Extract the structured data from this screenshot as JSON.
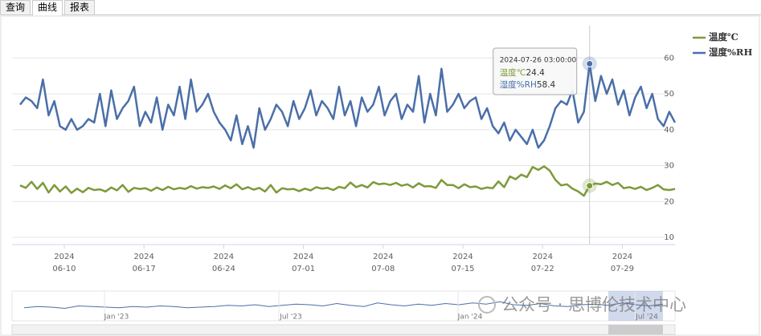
{
  "tabs": [
    "查询",
    "曲线",
    "报表"
  ],
  "active_tab": 1,
  "chart_data": {
    "type": "line",
    "x": [
      "2024-06-06 03:00:00",
      "2024-06-06 15:00:00",
      "2024-06-07 03:00:00",
      "2024-06-07 15:00:00",
      "2024-06-08 03:00:00",
      "2024-06-08 15:00:00",
      "2024-06-09 03:00:00",
      "2024-06-09 15:00:00",
      "2024-06-10 03:00:00",
      "2024-06-10 15:00:00",
      "2024-06-11 03:00:00",
      "2024-06-11 15:00:00",
      "2024-06-12 03:00:00",
      "2024-06-12 15:00:00",
      "2024-06-13 03:00:00",
      "2024-06-13 15:00:00",
      "2024-06-14 03:00:00",
      "2024-06-14 15:00:00",
      "2024-06-15 03:00:00",
      "2024-06-15 15:00:00",
      "2024-06-16 03:00:00",
      "2024-06-16 15:00:00",
      "2024-06-17 03:00:00",
      "2024-06-17 15:00:00",
      "2024-06-18 03:00:00",
      "2024-06-18 15:00:00",
      "2024-06-19 03:00:00",
      "2024-06-19 15:00:00",
      "2024-06-20 03:00:00",
      "2024-06-20 15:00:00",
      "2024-06-21 03:00:00",
      "2024-06-21 15:00:00",
      "2024-06-22 03:00:00",
      "2024-06-22 15:00:00",
      "2024-06-23 03:00:00",
      "2024-06-23 15:00:00",
      "2024-06-24 03:00:00",
      "2024-06-24 15:00:00",
      "2024-06-25 03:00:00",
      "2024-06-25 15:00:00",
      "2024-06-26 03:00:00",
      "2024-06-26 15:00:00",
      "2024-06-27 03:00:00",
      "2024-06-27 15:00:00",
      "2024-06-28 03:00:00",
      "2024-06-28 15:00:00",
      "2024-06-29 03:00:00",
      "2024-06-29 15:00:00",
      "2024-06-30 03:00:00",
      "2024-06-30 15:00:00",
      "2024-07-01 03:00:00",
      "2024-07-01 15:00:00",
      "2024-07-02 03:00:00",
      "2024-07-02 15:00:00",
      "2024-07-03 03:00:00",
      "2024-07-03 15:00:00",
      "2024-07-04 03:00:00",
      "2024-07-04 15:00:00",
      "2024-07-05 03:00:00",
      "2024-07-05 15:00:00",
      "2024-07-06 03:00:00",
      "2024-07-06 15:00:00",
      "2024-07-07 03:00:00",
      "2024-07-07 15:00:00",
      "2024-07-08 03:00:00",
      "2024-07-08 15:00:00",
      "2024-07-09 03:00:00",
      "2024-07-09 15:00:00",
      "2024-07-10 03:00:00",
      "2024-07-10 15:00:00",
      "2024-07-11 03:00:00",
      "2024-07-11 15:00:00",
      "2024-07-12 03:00:00",
      "2024-07-12 15:00:00",
      "2024-07-13 03:00:00",
      "2024-07-13 15:00:00",
      "2024-07-14 03:00:00",
      "2024-07-14 15:00:00",
      "2024-07-15 03:00:00",
      "2024-07-15 15:00:00",
      "2024-07-16 03:00:00",
      "2024-07-16 15:00:00",
      "2024-07-17 03:00:00",
      "2024-07-17 15:00:00",
      "2024-07-18 03:00:00",
      "2024-07-18 15:00:00",
      "2024-07-19 03:00:00",
      "2024-07-19 15:00:00",
      "2024-07-20 03:00:00",
      "2024-07-20 15:00:00",
      "2024-07-21 03:00:00",
      "2024-07-21 15:00:00",
      "2024-07-22 03:00:00",
      "2024-07-22 15:00:00",
      "2024-07-23 03:00:00",
      "2024-07-23 15:00:00",
      "2024-07-24 03:00:00",
      "2024-07-24 15:00:00",
      "2024-07-25 03:00:00",
      "2024-07-25 15:00:00",
      "2024-07-26 03:00:00",
      "2024-07-26 15:00:00",
      "2024-07-27 03:00:00",
      "2024-07-27 15:00:00",
      "2024-07-28 03:00:00",
      "2024-07-28 15:00:00",
      "2024-07-29 03:00:00",
      "2024-07-29 15:00:00",
      "2024-07-30 03:00:00",
      "2024-07-30 15:00:00",
      "2024-07-31 03:00:00",
      "2024-07-31 15:00:00",
      "2024-08-01 03:00:00",
      "2024-08-01 15:00:00",
      "2024-08-02 03:00:00",
      "2024-08-02 15:00:00"
    ],
    "series": [
      {
        "name": "温度℃",
        "color": "#7d9a3a",
        "values": [
          24.5,
          23.8,
          25.5,
          23.5,
          25.2,
          22.5,
          24.6,
          22.8,
          24.2,
          22.4,
          23.6,
          22.6,
          23.8,
          23.2,
          23.4,
          22.8,
          23.9,
          23.1,
          24.6,
          22.7,
          23.8,
          23.5,
          23.7,
          23.0,
          23.9,
          23.2,
          24.1,
          23.4,
          23.8,
          23.5,
          24.3,
          23.6,
          24.0,
          23.8,
          24.2,
          23.5,
          24.5,
          23.7,
          24.8,
          23.4,
          24.0,
          23.3,
          23.8,
          22.8,
          24.6,
          22.5,
          23.7,
          23.4,
          23.5,
          22.9,
          23.6,
          23.1,
          24.0,
          23.6,
          23.8,
          23.2,
          24.1,
          23.7,
          25.3,
          24.0,
          24.6,
          23.9,
          25.4,
          24.8,
          25.0,
          24.6,
          25.2,
          24.4,
          24.8,
          23.9,
          25.1,
          24.2,
          24.3,
          23.8,
          26.0,
          24.6,
          24.6,
          23.7,
          24.8,
          24.0,
          24.2,
          23.5,
          23.9,
          23.7,
          25.6,
          24.0,
          27.0,
          26.2,
          27.5,
          26.8,
          29.6,
          28.8,
          29.8,
          28.6,
          26.0,
          24.5,
          24.8,
          23.6,
          22.8,
          21.6,
          24.4,
          25.0,
          24.8,
          25.5,
          24.6,
          25.2,
          23.7,
          24.0,
          23.5,
          24.1,
          23.2,
          23.8,
          24.6,
          23.4,
          23.2,
          23.5
        ]
      },
      {
        "name": "湿度%RH",
        "color": "#4a6fa8",
        "values": [
          47,
          49,
          48,
          46,
          54,
          44,
          48,
          41,
          40,
          43,
          40,
          41,
          43,
          42,
          50,
          41,
          51,
          43,
          46,
          48,
          52,
          41,
          45,
          42,
          49,
          40,
          47,
          44,
          52,
          43,
          54,
          45,
          47,
          50,
          45,
          42,
          40,
          37,
          44,
          36,
          41,
          35,
          46,
          40,
          43,
          47,
          45,
          41,
          48,
          43,
          46,
          51,
          44,
          48,
          46,
          43,
          52,
          44,
          48,
          41,
          49,
          45,
          47,
          52,
          44,
          48,
          50,
          43,
          47,
          45,
          55,
          42,
          50,
          44,
          57,
          45,
          47,
          50,
          46,
          48,
          49,
          43,
          46,
          41,
          39,
          42,
          37,
          40,
          38,
          36,
          40,
          35,
          37,
          41,
          46,
          48,
          47,
          51,
          42,
          45,
          58.4,
          48,
          55,
          50,
          54,
          47,
          51,
          44,
          49,
          52,
          46,
          50,
          43,
          41,
          45,
          42
        ]
      }
    ],
    "xlim": [
      "2024-06-05 10:00:00",
      "2024-08-02 15:00:00"
    ],
    "xticks": [
      {
        "value": "2024-06-10 00:00:00",
        "label": [
          "2024",
          "06-10"
        ]
      },
      {
        "value": "2024-06-17 00:00:00",
        "label": [
          "2024",
          "06-17"
        ]
      },
      {
        "value": "2024-06-24 00:00:00",
        "label": [
          "2024",
          "06-24"
        ]
      },
      {
        "value": "2024-07-01 00:00:00",
        "label": [
          "2024",
          "07-01"
        ]
      },
      {
        "value": "2024-07-08 00:00:00",
        "label": [
          "2024",
          "07-08"
        ]
      },
      {
        "value": "2024-07-15 00:00:00",
        "label": [
          "2024",
          "07-15"
        ]
      },
      {
        "value": "2024-07-22 00:00:00",
        "label": [
          "2024",
          "07-22"
        ]
      },
      {
        "value": "2024-07-29 00:00:00",
        "label": [
          "2024",
          "07-29"
        ]
      }
    ],
    "ylim": [
      8,
      69
    ],
    "yticks": [
      10,
      20,
      30,
      40,
      50,
      60
    ],
    "grid": true,
    "legend": "top-right",
    "tooltip": {
      "x": "2024-07-26 03:00:00",
      "values": [
        24.4,
        58.4
      ]
    },
    "navigator": {
      "color": "#4a6fa8",
      "ylim": [
        20,
        70
      ],
      "values": [
        42,
        44,
        43,
        41,
        45,
        44,
        43,
        42,
        44,
        43,
        45,
        44,
        42,
        43,
        44,
        46,
        45,
        47,
        44,
        46,
        48,
        47,
        45,
        49,
        46,
        44,
        50,
        47,
        45,
        48,
        46,
        49,
        47,
        50,
        48,
        52,
        47,
        46,
        49,
        45,
        44,
        47,
        48,
        46,
        50,
        47,
        45,
        48
      ],
      "labels": [
        "Jan '23",
        "Jul '23",
        "Jan '24",
        "Jul '24"
      ]
    }
  },
  "watermark": "公众号 · 思博伦技术中心"
}
